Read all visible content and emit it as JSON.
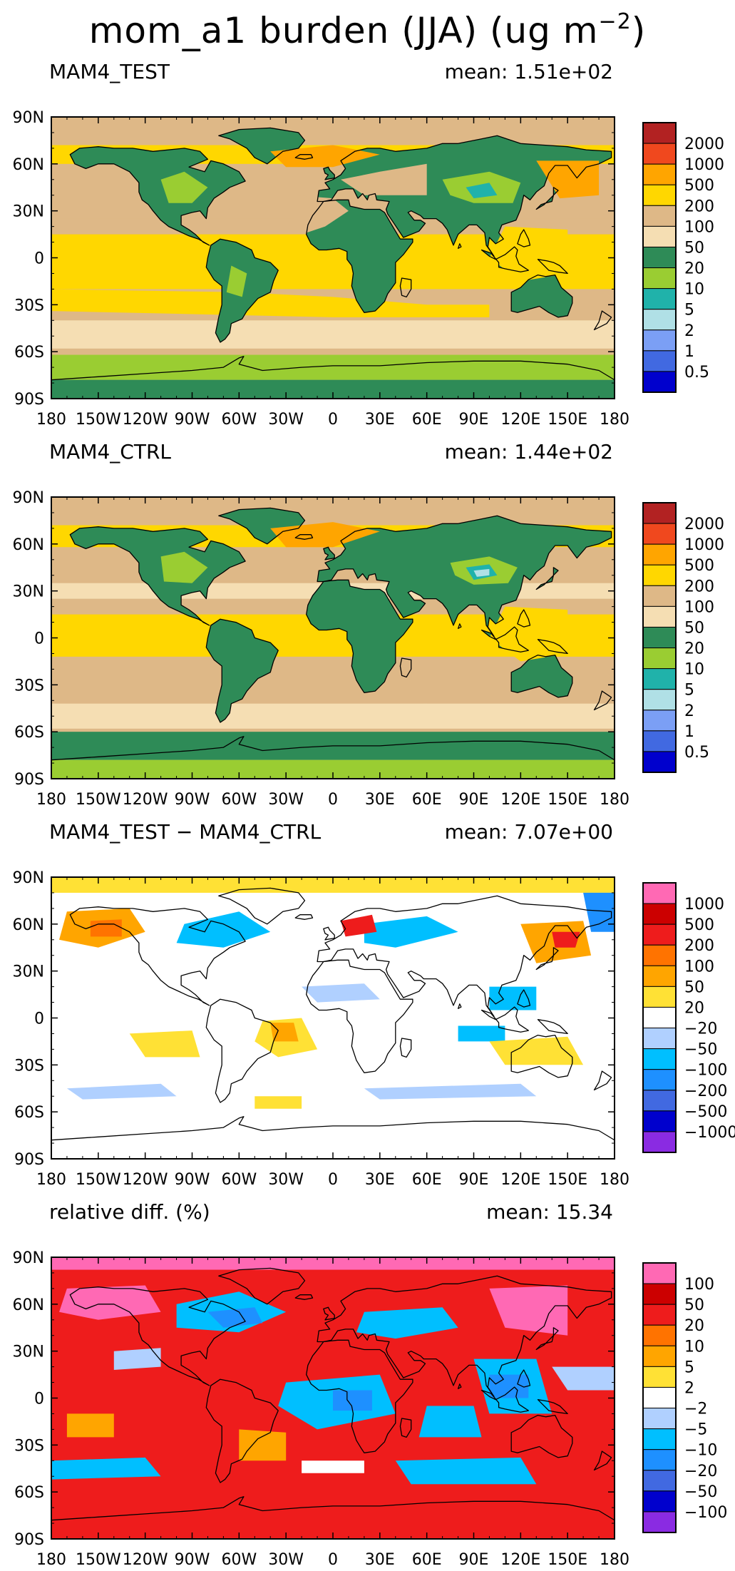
{
  "figure": {
    "title_prefix": "mom_a1 burden (JJA) (ug m",
    "title_exp": "−2",
    "title_suffix": ")"
  },
  "axes": {
    "lat_labels": [
      "90N",
      "60N",
      "30N",
      "0",
      "30S",
      "60S",
      "90S"
    ],
    "lon_labels": [
      "180",
      "150W",
      "120W",
      "90W",
      "60W",
      "30W",
      "0",
      "30E",
      "60E",
      "90E",
      "120E",
      "150E",
      "180"
    ]
  },
  "panels": [
    {
      "id": "test",
      "title": "MAM4_TEST",
      "mean_label": "mean:",
      "mean_value": "1.51e+02",
      "colorbar": {
        "colors": [
          "#b22222",
          "#f0481e",
          "#ffa500",
          "#ffd700",
          "#deb887",
          "#f5deb3",
          "#2e8b57",
          "#9acd32",
          "#20b2aa",
          "#b0e0e6",
          "#7b9ff5",
          "#4169e1",
          "#0000cd"
        ],
        "labels": [
          "2000",
          "1000",
          "500",
          "200",
          "100",
          "50",
          "20",
          "10",
          "5",
          "2",
          "1",
          "0.5"
        ]
      }
    },
    {
      "id": "ctrl",
      "title": "MAM4_CTRL",
      "mean_label": "mean:",
      "mean_value": "1.44e+02",
      "colorbar": {
        "colors": [
          "#b22222",
          "#f0481e",
          "#ffa500",
          "#ffd700",
          "#deb887",
          "#f5deb3",
          "#2e8b57",
          "#9acd32",
          "#20b2aa",
          "#b0e0e6",
          "#7b9ff5",
          "#4169e1",
          "#0000cd"
        ],
        "labels": [
          "2000",
          "1000",
          "500",
          "200",
          "100",
          "50",
          "20",
          "10",
          "5",
          "2",
          "1",
          "0.5"
        ]
      }
    },
    {
      "id": "diff",
      "title": "MAM4_TEST − MAM4_CTRL",
      "mean_label": "mean:",
      "mean_value": "7.07e+00",
      "colorbar": {
        "colors": [
          "#ff69b4",
          "#cc0000",
          "#ee1c1c",
          "#ff7300",
          "#ffa500",
          "#ffe135",
          "#ffffff",
          "#b0d0ff",
          "#00bfff",
          "#1e90ff",
          "#4169e1",
          "#0000cd",
          "#8a2be2"
        ],
        "labels": [
          "1000",
          "500",
          "200",
          "100",
          "50",
          "20",
          "−20",
          "−50",
          "−100",
          "−200",
          "−500",
          "−1000"
        ]
      }
    },
    {
      "id": "rel",
      "title": "relative diff. (%)",
      "mean_label": "mean:",
      "mean_value": "15.34",
      "colorbar": {
        "colors": [
          "#ff69b4",
          "#cc0000",
          "#ee1c1c",
          "#ff7300",
          "#ffa500",
          "#ffe135",
          "#ffffff",
          "#b0d0ff",
          "#00bfff",
          "#1e90ff",
          "#4169e1",
          "#0000cd",
          "#8a2be2"
        ],
        "labels": [
          "100",
          "50",
          "20",
          "10",
          "5",
          "2",
          "−2",
          "−5",
          "−10",
          "−20",
          "−50",
          "−100"
        ]
      }
    }
  ]
}
